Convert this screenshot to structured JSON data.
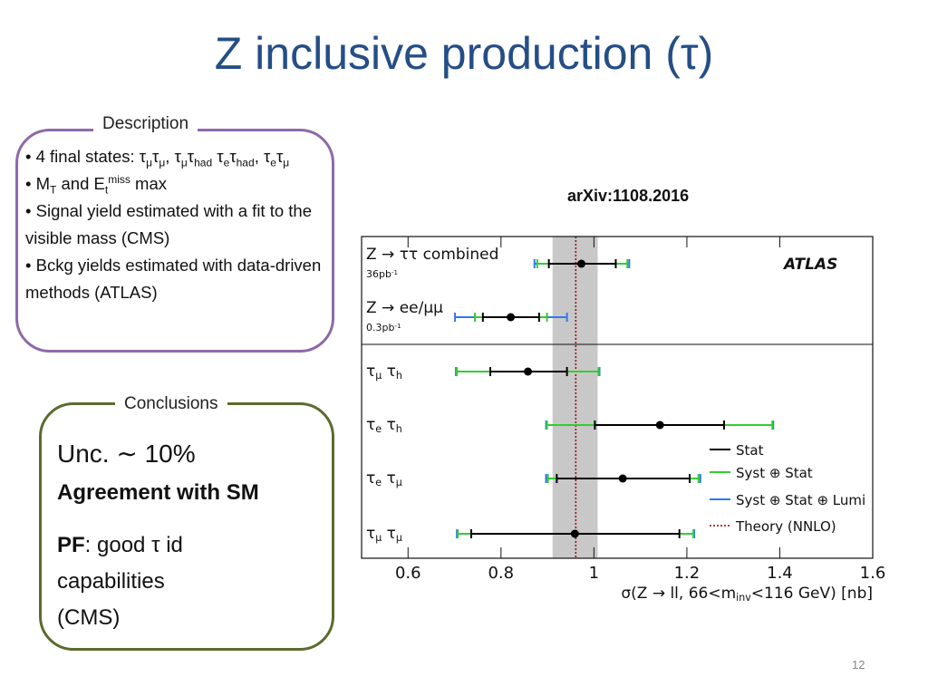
{
  "title": "Z inclusive production (τ)",
  "description": {
    "heading": "Description",
    "items": [
      [
        {
          "t": "• 4 final states: τ"
        },
        {
          "sub": "μ"
        },
        {
          "t": "τ"
        },
        {
          "sub": "μ"
        },
        {
          "t": ", τ"
        },
        {
          "sub": "μ"
        },
        {
          "t": "τ"
        },
        {
          "sub": "had"
        },
        {
          "t": " τ"
        },
        {
          "sub": "e"
        },
        {
          "t": "τ"
        },
        {
          "sub": "had"
        },
        {
          "t": ", τ"
        },
        {
          "sub": "e"
        },
        {
          "t": "τ"
        },
        {
          "sub": "μ"
        }
      ],
      [
        {
          "t": "• M"
        },
        {
          "sub": "T"
        },
        {
          "t": " and E"
        },
        {
          "sub": "t"
        },
        {
          "sup": "miss"
        },
        {
          "t": "  max"
        }
      ],
      [
        {
          "t": "• Signal yield estimated  with a fit to the visible mass (CMS)"
        }
      ],
      [
        {
          "t": "• Bckg yields estimated with data-driven methods (ATLAS)"
        }
      ]
    ]
  },
  "conclusions": {
    "heading": "Conclusions",
    "lines": [
      [
        {
          "t": "Unc. ∼ 10%"
        }
      ],
      [
        {
          "b": "Agreement with SM"
        }
      ],
      [
        {
          "b": "PF"
        },
        {
          "t": ": good τ id"
        }
      ],
      [
        {
          "t": "capabilities"
        }
      ],
      [
        {
          "t": "(CMS)"
        }
      ]
    ]
  },
  "reference": "arXiv:1108.2016",
  "page_number": "12",
  "chart_data": {
    "type": "summary",
    "experiment": "ATLAS",
    "xlabel": [
      {
        "t": "σ(Z → ll, 66<m"
      },
      {
        "sub": "inv"
      },
      {
        "t": "<116 GeV) [nb]"
      }
    ],
    "xlim": [
      0.5,
      1.6
    ],
    "xticks": [
      0.6,
      0.8,
      1,
      1.2,
      1.4,
      1.6
    ],
    "series": [
      {
        "name": "Stat",
        "color": "#000000"
      },
      {
        "name": "Syst ⊕ Stat",
        "color": "#33cc33"
      },
      {
        "name": "Syst ⊕ Stat ⊕ Lumi",
        "color": "#3377ee"
      },
      {
        "name": "Theory (NNLO)",
        "color": "#990000",
        "value": 0.961,
        "band": [
          0.911,
          1.008
        ]
      }
    ],
    "measurements": [
      {
        "label": [
          {
            "t": "Z → ττ combined"
          }
        ],
        "sublabel": [
          {
            "t": "36pb"
          },
          {
            "sup": "-1"
          }
        ],
        "value": 0.973,
        "intervals": [
          [
            0.903,
            1.047
          ],
          [
            0.878,
            1.072
          ],
          [
            0.872,
            1.076
          ]
        ]
      },
      {
        "label": [
          {
            "t": "Z → ee/μμ"
          }
        ],
        "sublabel": [
          {
            "t": "0.3pb"
          },
          {
            "sup": "-1"
          }
        ],
        "value": 0.821,
        "intervals": [
          [
            0.761,
            0.882
          ],
          [
            0.744,
            0.899
          ],
          [
            0.701,
            0.942
          ]
        ]
      },
      {
        "label": [
          {
            "t": "τ"
          },
          {
            "sub": "μ"
          },
          {
            "t": " τ"
          },
          {
            "sub": "h"
          }
        ],
        "value": 0.858,
        "intervals": [
          [
            0.777,
            0.942
          ],
          [
            0.705,
            1.01
          ],
          [
            0.703,
            1.012
          ]
        ]
      },
      {
        "label": [
          {
            "t": "τ"
          },
          {
            "sub": "e"
          },
          {
            "t": " τ"
          },
          {
            "sub": "h"
          }
        ],
        "value": 1.142,
        "intervals": [
          [
            1.002,
            1.28
          ],
          [
            0.899,
            1.384
          ],
          [
            0.897,
            1.386
          ]
        ]
      },
      {
        "label": [
          {
            "t": "τ"
          },
          {
            "sub": "e"
          },
          {
            "t": " τ"
          },
          {
            "sub": "μ"
          }
        ],
        "value": 1.062,
        "intervals": [
          [
            0.92,
            1.206
          ],
          [
            0.901,
            1.225
          ],
          [
            0.897,
            1.229
          ]
        ]
      },
      {
        "label": [
          {
            "t": "τ"
          },
          {
            "sub": "μ"
          },
          {
            "t": " τ"
          },
          {
            "sub": "μ"
          }
        ],
        "value": 0.959,
        "intervals": [
          [
            0.736,
            1.184
          ],
          [
            0.707,
            1.214
          ],
          [
            0.705,
            1.216
          ]
        ]
      }
    ]
  }
}
